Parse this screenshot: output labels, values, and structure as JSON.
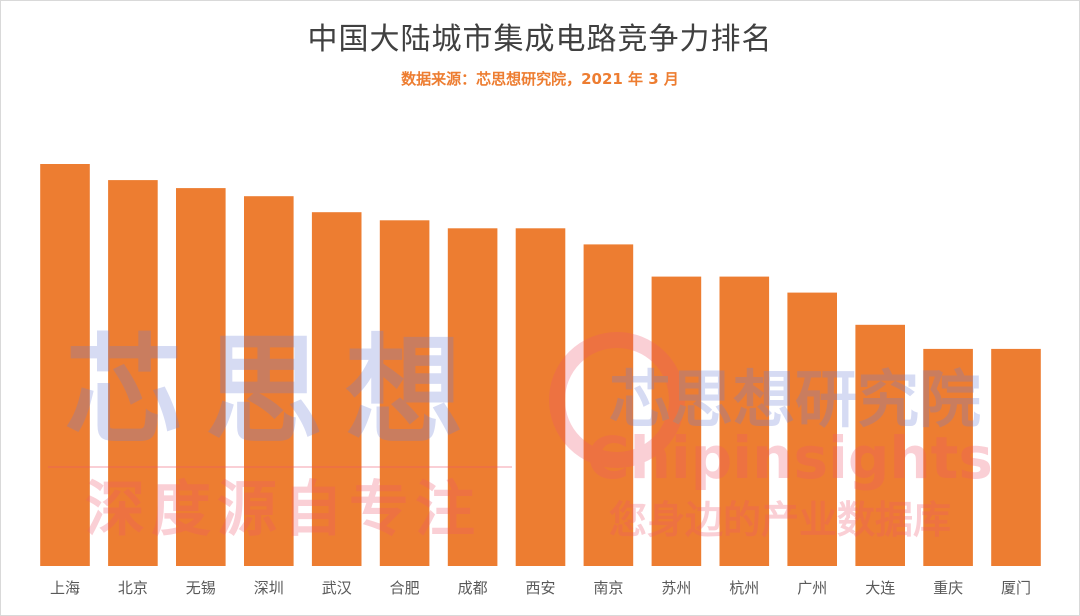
{
  "chart_data": {
    "type": "bar",
    "title": "中国大陆城市集成电路竞争力排名",
    "subtitle": "数据来源：芯思想研究院，2021 年 3 月",
    "categories": [
      "上海",
      "北京",
      "无锡",
      "深圳",
      "武汉",
      "合肥",
      "成都",
      "西安",
      "南京",
      "苏州",
      "杭州",
      "广州",
      "大连",
      "重庆",
      "厦门"
    ],
    "values": [
      100,
      96,
      94,
      92,
      88,
      86,
      84,
      84,
      80,
      72,
      72,
      68,
      60,
      54,
      54
    ],
    "ylim": [
      0,
      100
    ],
    "grid": false,
    "legend": "none",
    "bar_color": "#ed7d31"
  },
  "watermark": {
    "brand_cn": "芯思想",
    "slogan_cn": "深度源自专注",
    "institute_cn": "芯思想研究院",
    "brand_en": "Chipinsights",
    "tagline_cn": "您身边的产业数据库",
    "color_blue": "#6f7fd6",
    "color_red": "#f0566a"
  }
}
